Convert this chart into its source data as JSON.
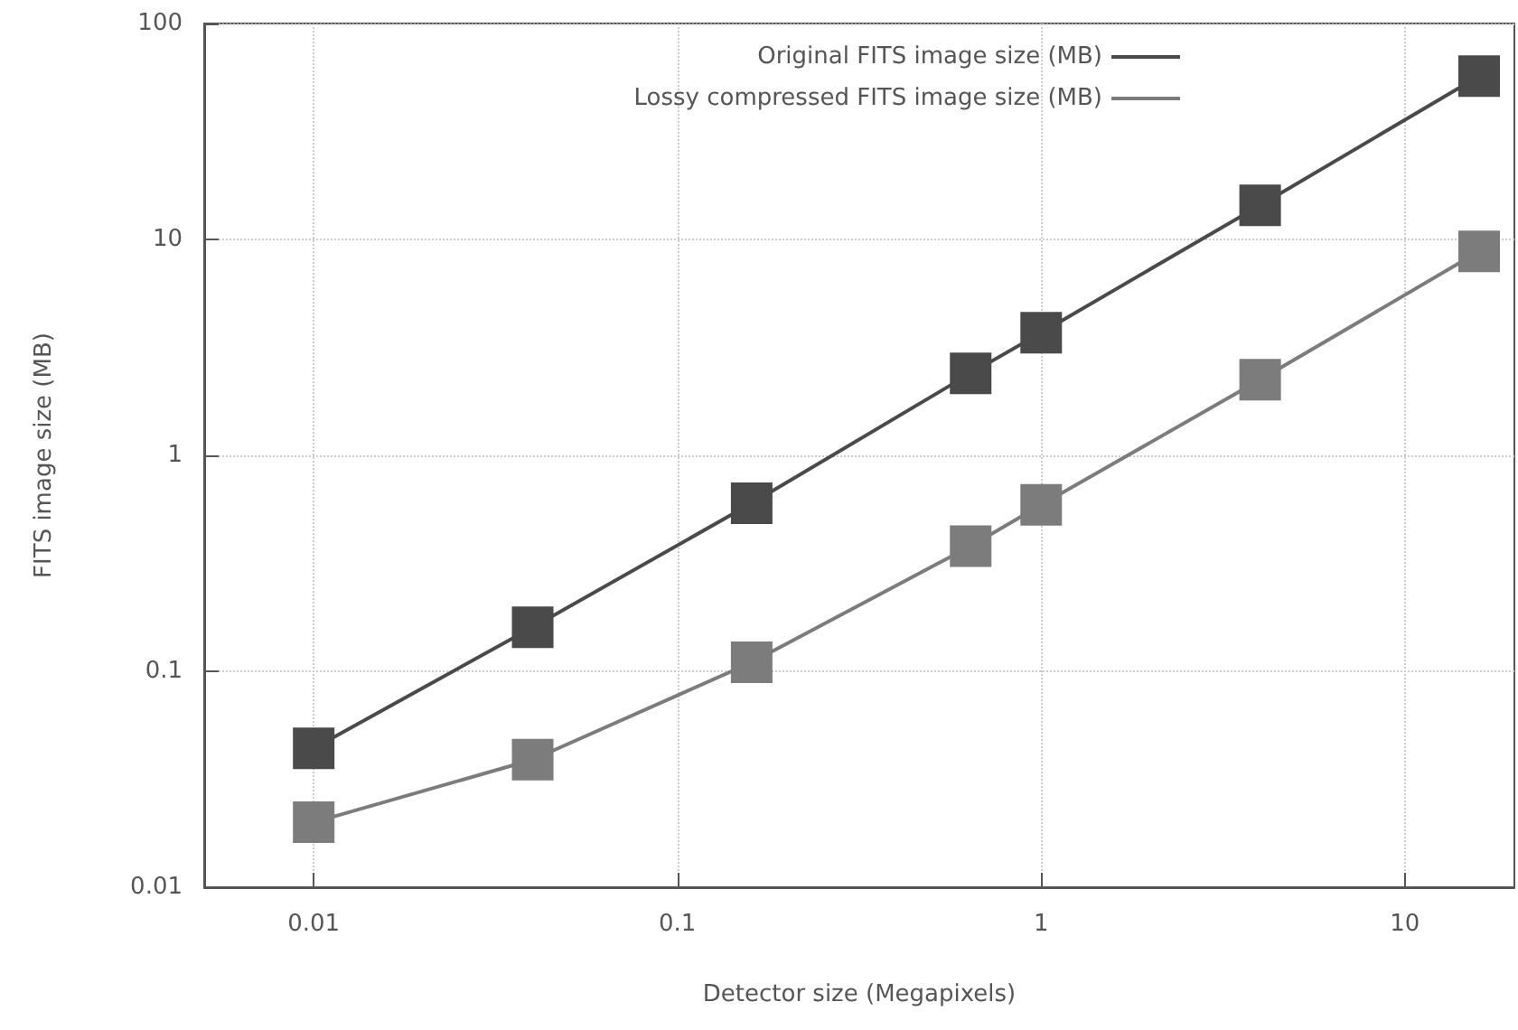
{
  "chart_data": {
    "type": "line",
    "xlabel": "Detector size (Megapixels)",
    "ylabel": "FITS image size (MB)",
    "x": [
      0.01,
      0.04,
      0.16,
      0.64,
      1,
      4,
      16
    ],
    "series": [
      {
        "name": "Original FITS image size (MB)",
        "color": "#4a4a4a",
        "values": [
          0.044,
          0.16,
          0.6,
          2.4,
          3.7,
          14.4,
          57
        ]
      },
      {
        "name": "Lossy compressed FITS image size (MB)",
        "color": "#7c7c7c",
        "values": [
          0.02,
          0.039,
          0.11,
          0.38,
          0.59,
          2.24,
          8.8
        ]
      }
    ],
    "log": "xy",
    "xlim": [
      0.005,
      20
    ],
    "ylim": [
      0.01,
      100
    ],
    "xticks": [
      0.01,
      0.1,
      1,
      10
    ],
    "yticks": [
      0.01,
      0.1,
      1,
      10,
      100
    ],
    "grid": true,
    "legend": "top right",
    "marker": "square",
    "line_style": "solid"
  }
}
